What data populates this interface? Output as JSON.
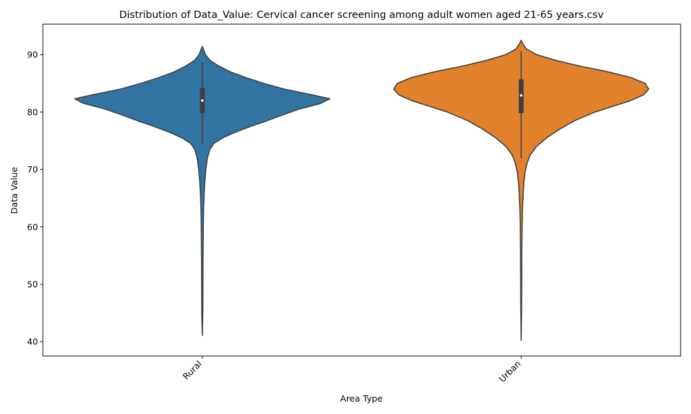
{
  "chart_data": {
    "type": "violin",
    "title": "Distribution of Data_Value: Cervical cancer screening among adult women aged 21-65 years.csv",
    "xlabel": "Area Type",
    "ylabel": "Data Value",
    "ylim": [
      37.5,
      95.3
    ],
    "yticks": [
      40,
      50,
      60,
      70,
      80,
      90
    ],
    "grid": false,
    "categories": [
      "Rural",
      "Urban"
    ],
    "series": [
      {
        "name": "Rural",
        "color": "#3274a1",
        "range": [
          41.1,
          91.4
        ],
        "box": {
          "q1": 79.8,
          "median": 82.0,
          "q3": 84.2,
          "whisker_low": 74.3,
          "whisker_high": 88.7
        },
        "density": [
          [
            41.1,
            0.0
          ],
          [
            45,
            0.004
          ],
          [
            50,
            0.005
          ],
          [
            55,
            0.006
          ],
          [
            60,
            0.008
          ],
          [
            63,
            0.01
          ],
          [
            66,
            0.015
          ],
          [
            68,
            0.02
          ],
          [
            70,
            0.028
          ],
          [
            72,
            0.04
          ],
          [
            73.5,
            0.06
          ],
          [
            74.5,
            0.09
          ],
          [
            75.5,
            0.16
          ],
          [
            76.5,
            0.26
          ],
          [
            77.5,
            0.38
          ],
          [
            78.5,
            0.51
          ],
          [
            79.5,
            0.63
          ],
          [
            80.5,
            0.76
          ],
          [
            81.5,
            0.93
          ],
          [
            82.3,
            1.0
          ],
          [
            83,
            0.86
          ],
          [
            84,
            0.64
          ],
          [
            85,
            0.48
          ],
          [
            86,
            0.34
          ],
          [
            87,
            0.22
          ],
          [
            88,
            0.13
          ],
          [
            89,
            0.06
          ],
          [
            90,
            0.025
          ],
          [
            91,
            0.008
          ],
          [
            91.4,
            0.0
          ]
        ]
      },
      {
        "name": "Urban",
        "color": "#e1812c",
        "range": [
          40.2,
          92.5
        ],
        "box": {
          "q1": 79.8,
          "median": 82.9,
          "q3": 85.7,
          "whisker_low": 71.9,
          "whisker_high": 90.6
        },
        "density": [
          [
            40.2,
            0.0
          ],
          [
            45,
            0.003
          ],
          [
            50,
            0.004
          ],
          [
            55,
            0.005
          ],
          [
            60,
            0.007
          ],
          [
            63,
            0.01
          ],
          [
            65.5,
            0.015
          ],
          [
            67.5,
            0.02
          ],
          [
            69.5,
            0.03
          ],
          [
            71,
            0.045
          ],
          [
            72.5,
            0.07
          ],
          [
            74,
            0.12
          ],
          [
            75.5,
            0.2
          ],
          [
            77,
            0.3
          ],
          [
            78.5,
            0.42
          ],
          [
            80,
            0.58
          ],
          [
            81,
            0.72
          ],
          [
            82,
            0.86
          ],
          [
            83,
            0.96
          ],
          [
            84,
            1.0
          ],
          [
            85,
            0.97
          ],
          [
            86,
            0.86
          ],
          [
            87,
            0.68
          ],
          [
            88,
            0.46
          ],
          [
            89,
            0.27
          ],
          [
            90,
            0.12
          ],
          [
            91,
            0.04
          ],
          [
            92,
            0.01
          ],
          [
            92.5,
            0.0
          ]
        ]
      }
    ]
  }
}
